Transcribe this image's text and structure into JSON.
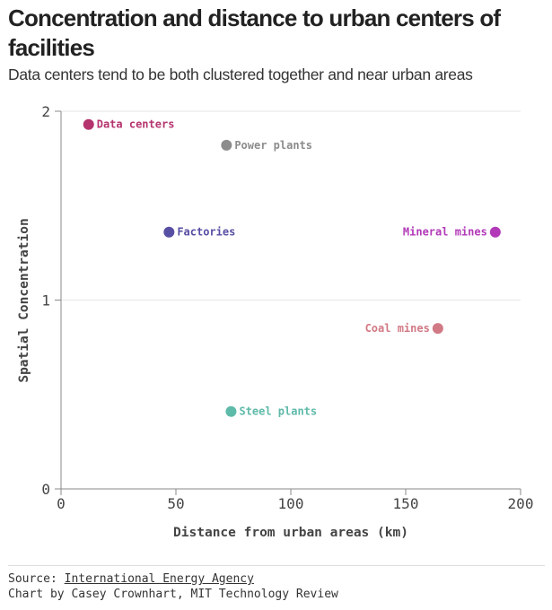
{
  "header": {
    "title": "Concentration and distance to urban centers of facilities",
    "subtitle": "Data centers tend to be both clustered together and near urban areas"
  },
  "chart_data": {
    "type": "scatter",
    "xlabel": "Distance from urban areas (km)",
    "ylabel": "Spatial Concentration",
    "xlim": [
      0,
      200
    ],
    "ylim": [
      0,
      2
    ],
    "xticks": [
      "0",
      "50",
      "100",
      "150",
      "200"
    ],
    "yticks": [
      "0",
      "1",
      "2"
    ],
    "grid": true,
    "points": [
      {
        "label": "Data centers",
        "x": 12,
        "y": 1.93,
        "color": "#b5346e",
        "label_side": "right"
      },
      {
        "label": "Power plants",
        "x": 72,
        "y": 1.82,
        "color": "#8c8c8c",
        "label_side": "right"
      },
      {
        "label": "Factories",
        "x": 47,
        "y": 1.36,
        "color": "#574fa3",
        "label_side": "right"
      },
      {
        "label": "Mineral mines",
        "x": 189,
        "y": 1.36,
        "color": "#b23ab8",
        "label_side": "left"
      },
      {
        "label": "Coal mines",
        "x": 164,
        "y": 0.85,
        "color": "#d17a86",
        "label_side": "left"
      },
      {
        "label": "Steel plants",
        "x": 74,
        "y": 0.41,
        "color": "#5ebaa9",
        "label_side": "right"
      }
    ]
  },
  "footer": {
    "source_prefix": "Source: ",
    "source_link": "International Energy Agency",
    "credit": "Chart by Casey Crownhart, MIT Technology Review"
  }
}
